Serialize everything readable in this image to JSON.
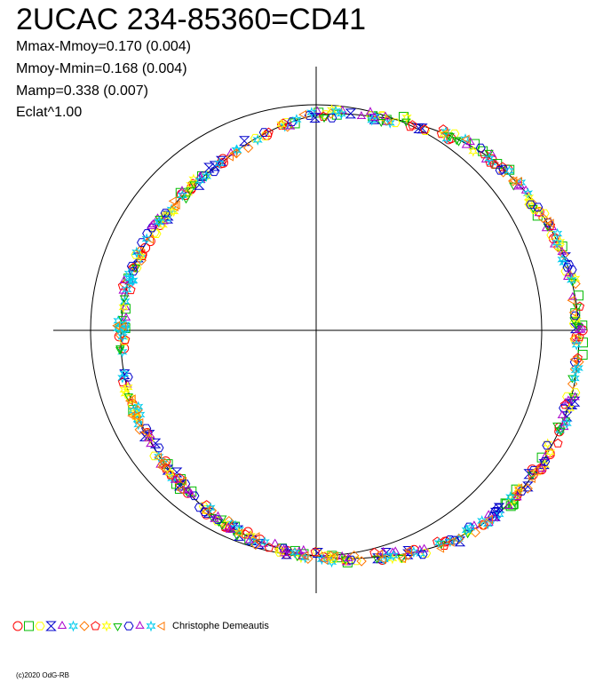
{
  "header": {
    "title": "2UCAC 234-85360=CD41",
    "stats": [
      "Mmax-Mmoy=0.170 (0.004)",
      "Mmoy-Mmin=0.168 (0.004)",
      "Mamp=0.338 (0.007)",
      "Eclat^1.00"
    ]
  },
  "footer": {
    "observer": "Christophe Demeautis",
    "copyright": "(c)2020 OdG-RB"
  },
  "chart_data": {
    "type": "scatter",
    "polar": true,
    "axes": "crosshair",
    "grid": false,
    "reference_circle_radius": 1.0,
    "mean_curve": [
      {
        "a": 0,
        "r": 1.165
      },
      {
        "a": 15,
        "r": 1.15
      },
      {
        "a": 30,
        "r": 1.12
      },
      {
        "a": 45,
        "r": 1.085
      },
      {
        "a": 60,
        "r": 1.03
      },
      {
        "a": 75,
        "r": 0.98
      },
      {
        "a": 90,
        "r": 0.955
      },
      {
        "a": 105,
        "r": 0.9
      },
      {
        "a": 120,
        "r": 0.85
      },
      {
        "a": 135,
        "r": 0.84
      },
      {
        "a": 150,
        "r": 0.845
      },
      {
        "a": 165,
        "r": 0.86
      },
      {
        "a": 180,
        "r": 0.865
      },
      {
        "a": 195,
        "r": 0.875
      },
      {
        "a": 210,
        "r": 0.88
      },
      {
        "a": 225,
        "r": 0.9
      },
      {
        "a": 240,
        "r": 0.935
      },
      {
        "a": 255,
        "r": 0.97
      },
      {
        "a": 270,
        "r": 1.0
      },
      {
        "a": 285,
        "r": 1.04
      },
      {
        "a": 300,
        "r": 1.1
      },
      {
        "a": 315,
        "r": 1.145
      },
      {
        "a": 330,
        "r": 1.16
      },
      {
        "a": 345,
        "r": 1.17
      }
    ],
    "series": [
      {
        "symbol": "circle",
        "color": "#ff0000",
        "count": 45
      },
      {
        "symbol": "square",
        "color": "#00bb00",
        "count": 45
      },
      {
        "symbol": "hexagon",
        "color": "#ffff00",
        "count": 45
      },
      {
        "symbol": "hourglass",
        "color": "#0000cc",
        "count": 45
      },
      {
        "symbol": "triangle-up",
        "color": "#aa00cc",
        "count": 45
      },
      {
        "symbol": "star",
        "color": "#00ccee",
        "count": 45
      },
      {
        "symbol": "diamond",
        "color": "#ff7700",
        "count": 45
      },
      {
        "symbol": "pentagon",
        "color": "#ff0000",
        "count": 45
      },
      {
        "symbol": "star",
        "color": "#ffff00",
        "count": 45
      },
      {
        "symbol": "triangle-down",
        "color": "#00bb00",
        "count": 45
      },
      {
        "symbol": "hexagon",
        "color": "#0000cc",
        "count": 45
      },
      {
        "symbol": "tri-star",
        "color": "#aa00cc",
        "count": 45
      },
      {
        "symbol": "star",
        "color": "#00ccee",
        "count": 45
      },
      {
        "symbol": "triangle-left",
        "color": "#ff7700",
        "count": 45
      }
    ]
  }
}
